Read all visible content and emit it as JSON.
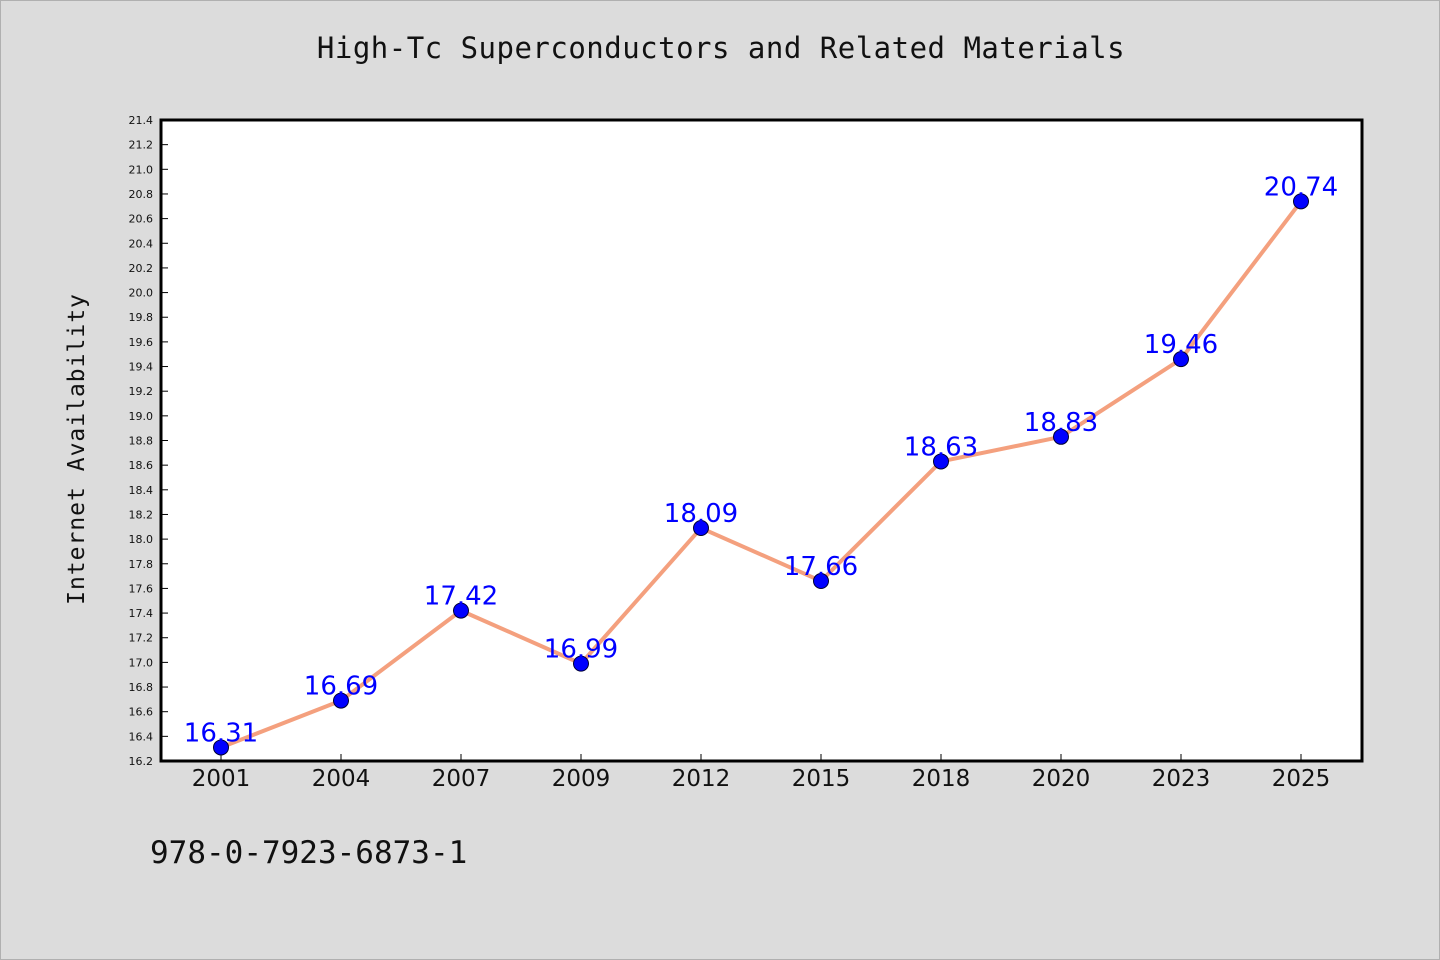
{
  "chart_data": {
    "type": "line",
    "title": "High-Tc Superconductors and Related Materials",
    "xlabel": "",
    "ylabel": "Internet Availability",
    "categories": [
      "2001",
      "2004",
      "2007",
      "2009",
      "2012",
      "2015",
      "2018",
      "2020",
      "2023",
      "2025"
    ],
    "series": [
      {
        "values": [
          16.31,
          16.69,
          17.42,
          16.99,
          18.09,
          17.66,
          18.63,
          18.83,
          19.46,
          20.74
        ],
        "data_labels": [
          "16.31",
          "16.69",
          "17.42",
          "16.99",
          "18.09",
          "17.66",
          "18.63",
          "18.83",
          "19.46",
          "20.74"
        ],
        "line_color": "#f4a07e",
        "marker_color": "#0000ff"
      }
    ],
    "ylim": [
      16.2,
      21.4
    ],
    "yticks": [
      "16.2",
      "16.4",
      "16.6",
      "16.8",
      "17.0",
      "17.2",
      "17.4",
      "17.6",
      "17.8",
      "18.0",
      "18.2",
      "18.4",
      "18.6",
      "18.8",
      "19.0",
      "19.2",
      "19.4",
      "19.6",
      "19.8",
      "20.0",
      "20.2",
      "20.4",
      "20.6",
      "20.8",
      "21.0",
      "21.2",
      "21.4"
    ],
    "grid": false,
    "legend": "none",
    "colors": {
      "background": "#dcdcdc",
      "plot_background": "#ffffff",
      "axis": "#000000"
    }
  },
  "footer": {
    "code": "978-0-7923-6873-1"
  }
}
